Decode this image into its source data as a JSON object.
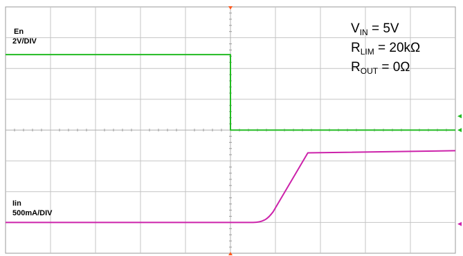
{
  "chart_data": {
    "type": "line",
    "title": "",
    "xlabel": "",
    "ylabel": "",
    "grid": true,
    "divisions": {
      "x": 10,
      "y": 8
    },
    "xlim": [
      0,
      10
    ],
    "ylim": [
      -4,
      4
    ],
    "series": [
      {
        "name": "En",
        "scale_label": "2V/DIV",
        "color": "#22bb22",
        "x": [
          0,
          5.0,
          5.0,
          10
        ],
        "y": [
          2.45,
          2.45,
          0.0,
          0.0
        ]
      },
      {
        "name": "Iin",
        "scale_label": "500mA/DIV",
        "color": "#cc22aa",
        "x": [
          0,
          5.55,
          5.72,
          5.9,
          6.7,
          6.85,
          10
        ],
        "y": [
          -3.0,
          -3.0,
          -2.92,
          -2.7,
          -0.75,
          -0.7,
          -0.67
        ]
      }
    ],
    "annotations": [
      {
        "main": "V",
        "sub": "IN",
        "rest": " = 5V"
      },
      {
        "main": "R",
        "sub": "LIM",
        "rest": " = 20kΩ"
      },
      {
        "main": "R",
        "sub": "OUT",
        "rest": " = 0Ω"
      }
    ]
  }
}
